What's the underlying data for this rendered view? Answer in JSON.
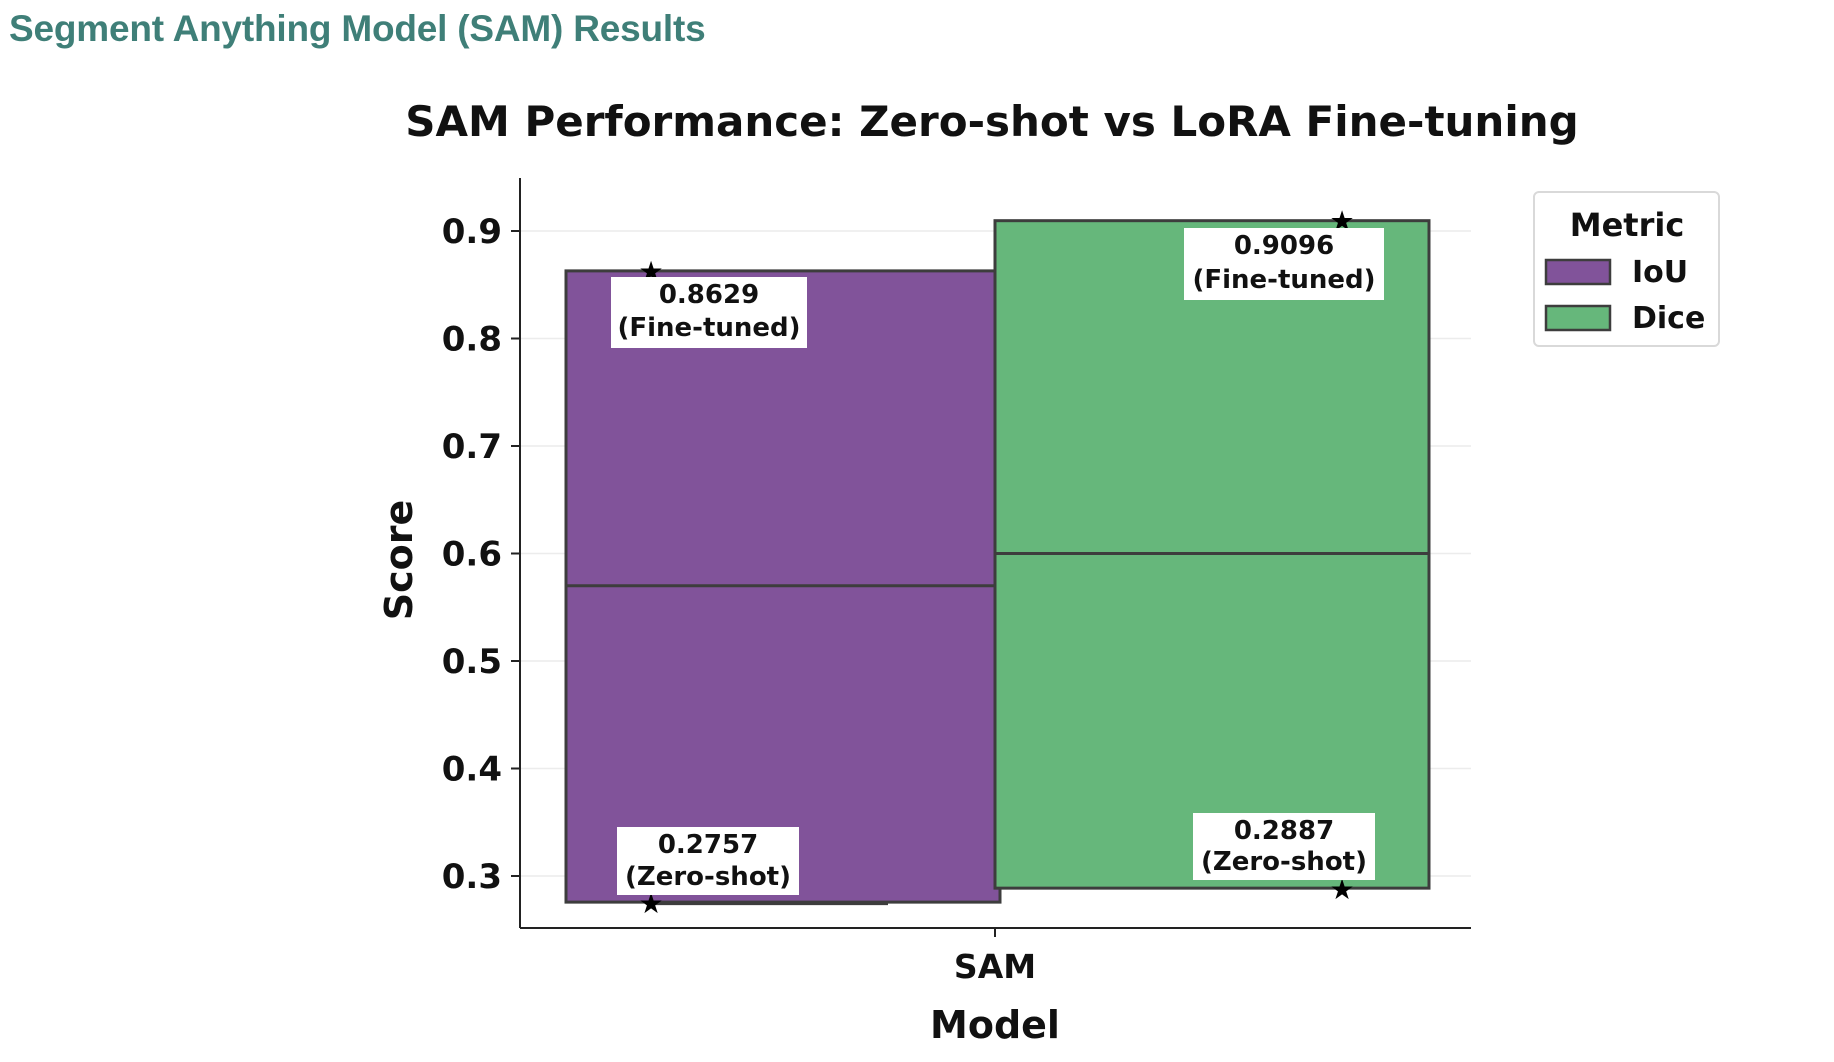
{
  "page": {
    "heading": "Segment Anything Model (SAM) Results"
  },
  "chart_data": {
    "type": "bar",
    "title": "SAM Performance: Zero-shot vs LoRA Fine-tuning",
    "xlabel": "Model",
    "ylabel": "Score",
    "categories": [
      "SAM"
    ],
    "ylim": [
      0.25,
      0.95
    ],
    "yticks": [
      "0.3",
      "0.4",
      "0.5",
      "0.6",
      "0.7",
      "0.8",
      "0.9"
    ],
    "grid": true,
    "legend": {
      "title": "Metric",
      "placement": "outside-top-right",
      "entries": [
        "IoU",
        "Dice"
      ]
    },
    "series": [
      {
        "name": "IoU",
        "color": "#81539a",
        "zero_shot": 0.2757,
        "fine_tuned": 0.8629,
        "mean": 0.57,
        "labels": {
          "fine_tuned_value": "0.8629",
          "fine_tuned_tag": "(Fine-tuned)",
          "zero_shot_value": "0.2757",
          "zero_shot_tag": "(Zero-shot)"
        }
      },
      {
        "name": "Dice",
        "color": "#66b77b",
        "zero_shot": 0.2887,
        "fine_tuned": 0.9096,
        "mean": 0.6,
        "labels": {
          "fine_tuned_value": "0.9096",
          "fine_tuned_tag": "(Fine-tuned)",
          "zero_shot_value": "0.2887",
          "zero_shot_tag": "(Zero-shot)"
        }
      }
    ],
    "marker": "★"
  }
}
